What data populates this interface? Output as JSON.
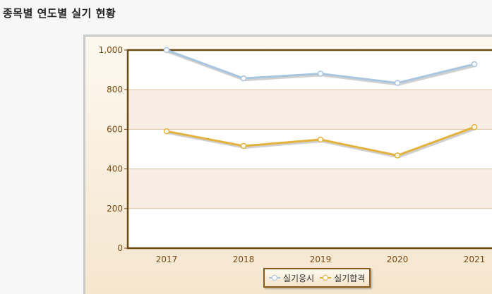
{
  "page": {
    "title": "종목별 연도별 실기 현황"
  },
  "chart_data": {
    "type": "line",
    "categories": [
      "2017",
      "2018",
      "2019",
      "2020",
      "2021"
    ],
    "series": [
      {
        "name": "실기응시",
        "values": [
          1000,
          857,
          881,
          834,
          929
        ],
        "color": "#a9c6e0"
      },
      {
        "name": "실기합격",
        "values": [
          590,
          516,
          548,
          468,
          611
        ],
        "color": "#e3b23c"
      }
    ],
    "ylim": [
      0,
      1000
    ],
    "yticks": [
      0,
      200,
      400,
      600,
      800,
      1000
    ],
    "ytick_labels": [
      "0",
      "200",
      "400",
      "600",
      "800",
      "1,000"
    ],
    "grid": true,
    "legend_position": "bottom-center",
    "colors": {
      "axis": "#6b4a12",
      "grid": "#d9c3a0",
      "band": "#f8ede3",
      "tick_text": "#7a4a12"
    }
  }
}
